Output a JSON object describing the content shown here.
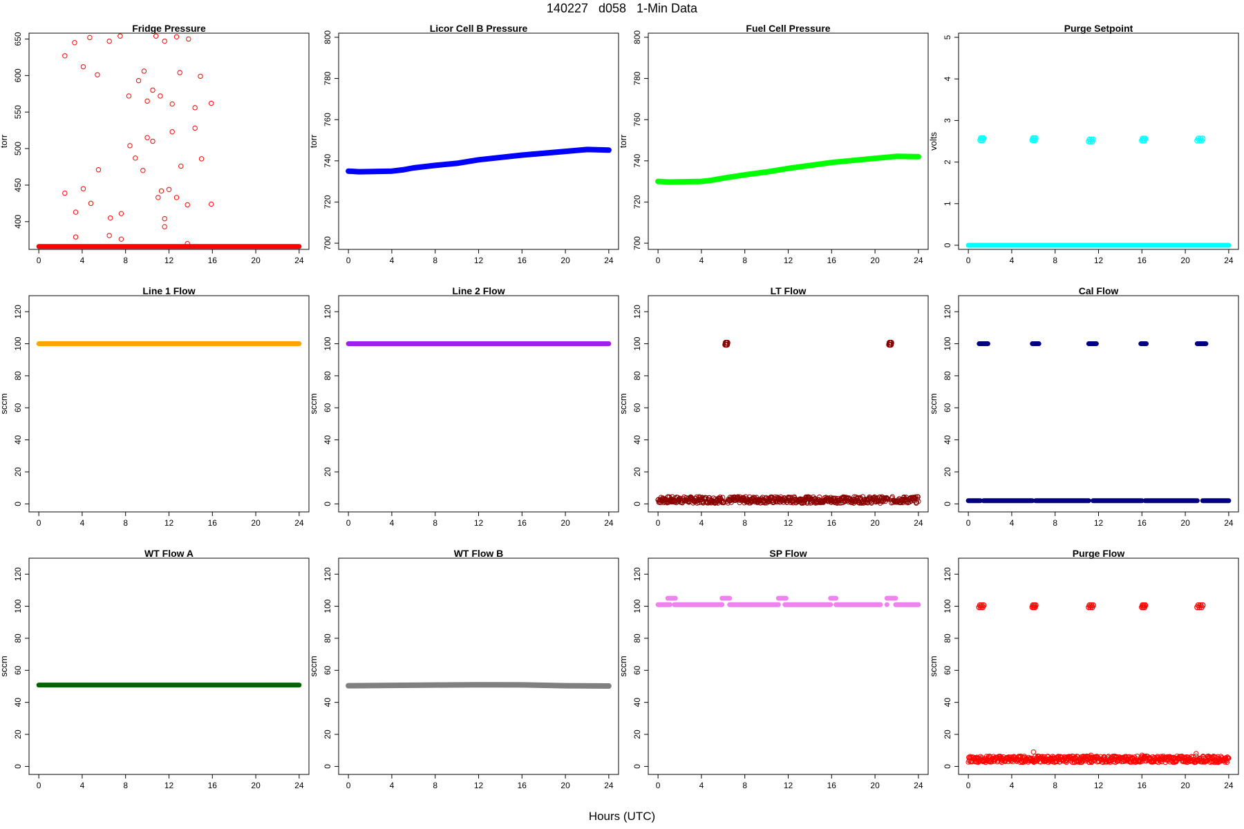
{
  "figure": {
    "title": "140227   d058   1-Min Data",
    "xlabel": "Hours (UTC)"
  },
  "chart_data": [
    {
      "type": "scatter",
      "title": "Fridge Pressure",
      "ylabel": "torr",
      "xlim": [
        0,
        24
      ],
      "ylim": [
        362,
        658
      ],
      "yticks": [
        400,
        450,
        500,
        550,
        600,
        650
      ],
      "xticks": [
        0,
        4,
        8,
        12,
        16,
        20,
        24
      ],
      "series": [
        {
          "color": "#ff0000",
          "baseline": {
            "x": [
              0,
              24
            ],
            "y": 366
          },
          "points": [
            [
              2.4,
              627
            ],
            [
              3.3,
              645
            ],
            [
              4.7,
              652
            ],
            [
              6.5,
              647
            ],
            [
              7.5,
              654
            ],
            [
              10.8,
              654
            ],
            [
              11.6,
              647
            ],
            [
              12.7,
              653
            ],
            [
              13.8,
              650
            ],
            [
              4.1,
              612
            ],
            [
              5.4,
              601
            ],
            [
              9.2,
              593
            ],
            [
              9.7,
              606
            ],
            [
              14.9,
              599
            ],
            [
              13.0,
              604
            ],
            [
              8.3,
              572
            ],
            [
              10.0,
              565
            ],
            [
              10.5,
              580
            ],
            [
              11.2,
              572
            ],
            [
              12.3,
              561
            ],
            [
              14.4,
              556
            ],
            [
              15.9,
              562
            ],
            [
              8.4,
              504
            ],
            [
              8.9,
              487
            ],
            [
              10.0,
              515
            ],
            [
              10.5,
              510
            ],
            [
              12.3,
              523
            ],
            [
              14.4,
              528
            ],
            [
              15.0,
              486
            ],
            [
              13.1,
              476
            ],
            [
              5.5,
              471
            ],
            [
              9.6,
              470
            ],
            [
              2.4,
              439
            ],
            [
              4.1,
              445
            ],
            [
              4.8,
              425
            ],
            [
              3.4,
              413
            ],
            [
              11.0,
              433
            ],
            [
              11.3,
              442
            ],
            [
              12.0,
              444
            ],
            [
              12.7,
              433
            ],
            [
              13.7,
              423
            ],
            [
              15.9,
              424
            ],
            [
              6.6,
              405
            ],
            [
              7.6,
              411
            ],
            [
              11.6,
              404
            ],
            [
              11.6,
              393
            ],
            [
              3.4,
              379
            ],
            [
              6.5,
              381
            ],
            [
              7.6,
              376
            ],
            [
              13.7,
              370
            ]
          ]
        }
      ]
    },
    {
      "type": "scatter",
      "title": "Licor Cell B Pressure",
      "ylabel": "torr",
      "xlim": [
        0,
        24
      ],
      "ylim": [
        697,
        802
      ],
      "yticks": [
        700,
        720,
        740,
        760,
        780,
        800
      ],
      "xticks": [
        0,
        4,
        8,
        12,
        16,
        20,
        24
      ],
      "series": [
        {
          "color": "#0000ff",
          "line": [
            [
              0,
              735
            ],
            [
              1,
              734.7
            ],
            [
              4,
              735
            ],
            [
              5,
              735.6
            ],
            [
              6,
              736.6
            ],
            [
              8,
              737.8
            ],
            [
              10,
              738.8
            ],
            [
              12,
              740.5
            ],
            [
              16,
              742.8
            ],
            [
              20,
              744.6
            ],
            [
              22,
              745.5
            ],
            [
              24,
              745.2
            ]
          ]
        }
      ]
    },
    {
      "type": "scatter",
      "title": "Fuel Cell Pressure",
      "ylabel": "torr",
      "xlim": [
        0,
        24
      ],
      "ylim": [
        697,
        802
      ],
      "yticks": [
        700,
        720,
        740,
        760,
        780,
        800
      ],
      "xticks": [
        0,
        4,
        8,
        12,
        16,
        20,
        24
      ],
      "series": [
        {
          "color": "#00ff00",
          "line": [
            [
              0,
              730
            ],
            [
              1,
              729.7
            ],
            [
              4,
              730
            ],
            [
              5,
              730.6
            ],
            [
              6,
              731.6
            ],
            [
              8,
              733.2
            ],
            [
              10,
              734.6
            ],
            [
              12,
              736.3
            ],
            [
              16,
              739.2
            ],
            [
              20,
              741.2
            ],
            [
              22,
              742.2
            ],
            [
              24,
              742
            ]
          ]
        }
      ]
    },
    {
      "type": "scatter",
      "title": "Purge Setpoint",
      "ylabel": "volts",
      "xlim": [
        0,
        24
      ],
      "ylim": [
        -0.1,
        5.1
      ],
      "yticks": [
        0,
        1,
        2,
        3,
        4,
        5
      ],
      "xticks": [
        0,
        4,
        8,
        12,
        16,
        20,
        24
      ],
      "series": [
        {
          "color": "#00ffff",
          "baseline": {
            "x": [
              0,
              24
            ],
            "y": 0
          },
          "clusters": [
            [
              1.1,
              1.4,
              2.55
            ],
            [
              5.9,
              6.2,
              2.55
            ],
            [
              11.1,
              11.5,
              2.52
            ],
            [
              16.0,
              16.3,
              2.54
            ],
            [
              21.1,
              21.6,
              2.54
            ]
          ]
        }
      ]
    },
    {
      "type": "scatter",
      "title": "Line 1 Flow",
      "ylabel": "sccm",
      "xlim": [
        0,
        24
      ],
      "ylim": [
        -5,
        130
      ],
      "yticks": [
        0,
        20,
        40,
        60,
        80,
        100,
        120
      ],
      "xticks": [
        0,
        4,
        8,
        12,
        16,
        20,
        24
      ],
      "series": [
        {
          "color": "#ffa500",
          "baseline": {
            "x": [
              0,
              24
            ],
            "y": 100
          }
        }
      ]
    },
    {
      "type": "scatter",
      "title": "Line 2 Flow",
      "ylabel": "sccm",
      "xlim": [
        0,
        24
      ],
      "ylim": [
        -5,
        130
      ],
      "yticks": [
        0,
        20,
        40,
        60,
        80,
        100,
        120
      ],
      "xticks": [
        0,
        4,
        8,
        12,
        16,
        20,
        24
      ],
      "series": [
        {
          "color": "#a020f0",
          "baseline": {
            "x": [
              0,
              24
            ],
            "y": 100
          }
        }
      ]
    },
    {
      "type": "scatter",
      "title": "LT Flow",
      "ylabel": "sccm",
      "xlim": [
        0,
        24
      ],
      "ylim": [
        -5,
        130
      ],
      "yticks": [
        0,
        20,
        40,
        60,
        80,
        100,
        120
      ],
      "xticks": [
        0,
        4,
        8,
        12,
        16,
        20,
        24
      ],
      "series": [
        {
          "color": "#8b0000",
          "noisy_band": {
            "x": [
              0,
              24
            ],
            "y": [
              0.5,
              4.5
            ],
            "gaps": [
              6.1,
              6.4,
              21.2,
              21.5
            ]
          },
          "clusters": [
            [
              6.2,
              6.4,
              100
            ],
            [
              21.3,
              21.5,
              100
            ]
          ]
        }
      ]
    },
    {
      "type": "scatter",
      "title": "Cal Flow",
      "ylabel": "sccm",
      "xlim": [
        0,
        24
      ],
      "ylim": [
        -5,
        130
      ],
      "yticks": [
        0,
        20,
        40,
        60,
        80,
        100,
        120
      ],
      "xticks": [
        0,
        4,
        8,
        12,
        16,
        20,
        24
      ],
      "series": [
        {
          "color": "#000080",
          "baseline": {
            "x": [
              0,
              24
            ],
            "y": 2,
            "gaps": [
              1.1,
              1.4,
              5.9,
              6.2,
              11.1,
              11.5,
              16.0,
              16.3,
              21.1,
              21.6
            ]
          },
          "segments": [
            [
              1.0,
              1.8,
              100
            ],
            [
              5.9,
              6.5,
              100
            ],
            [
              11.1,
              11.8,
              100
            ],
            [
              15.9,
              16.4,
              100
            ],
            [
              21.1,
              21.9,
              100
            ]
          ]
        }
      ]
    },
    {
      "type": "scatter",
      "title": "WT Flow A",
      "ylabel": "sccm",
      "xlim": [
        0,
        24
      ],
      "ylim": [
        -5,
        130
      ],
      "yticks": [
        0,
        20,
        40,
        60,
        80,
        100,
        120
      ],
      "xticks": [
        0,
        4,
        8,
        12,
        16,
        20,
        24
      ],
      "series": [
        {
          "color": "#006400",
          "baseline": {
            "x": [
              0,
              24
            ],
            "y": 50.8
          }
        }
      ]
    },
    {
      "type": "scatter",
      "title": "WT Flow B",
      "ylabel": "sccm",
      "xlim": [
        0,
        24
      ],
      "ylim": [
        -5,
        130
      ],
      "yticks": [
        0,
        20,
        40,
        60,
        80,
        100,
        120
      ],
      "xticks": [
        0,
        4,
        8,
        12,
        16,
        20,
        24
      ],
      "series": [
        {
          "color": "#808080",
          "line": [
            [
              0,
              50.4
            ],
            [
              4,
              50.6
            ],
            [
              8,
              50.8
            ],
            [
              12,
              51
            ],
            [
              16,
              50.9
            ],
            [
              20,
              50.4
            ],
            [
              24,
              50.2
            ]
          ]
        }
      ]
    },
    {
      "type": "scatter",
      "title": "SP Flow",
      "ylabel": "sccm",
      "xlim": [
        0,
        24
      ],
      "ylim": [
        -5,
        130
      ],
      "yticks": [
        0,
        20,
        40,
        60,
        80,
        100,
        120
      ],
      "xticks": [
        0,
        4,
        8,
        12,
        16,
        20,
        24
      ],
      "series": [
        {
          "color": "#ee82ee",
          "segments": [
            [
              0,
              1.1,
              101
            ],
            [
              1.5,
              5.9,
              101
            ],
            [
              6.6,
              11.1,
              101
            ],
            [
              11.7,
              15.9,
              101
            ],
            [
              16.4,
              20.5,
              101
            ],
            [
              21.1,
              21.1,
              101
            ],
            [
              21.9,
              24,
              101
            ],
            [
              0.9,
              1.6,
              105
            ],
            [
              5.9,
              6.6,
              105
            ],
            [
              11.1,
              11.8,
              105
            ],
            [
              15.9,
              16.4,
              105
            ],
            [
              21.1,
              21.9,
              105
            ]
          ]
        }
      ]
    },
    {
      "type": "scatter",
      "title": "Purge Flow",
      "ylabel": "sccm",
      "xlim": [
        0,
        24
      ],
      "ylim": [
        -5,
        130
      ],
      "yticks": [
        0,
        20,
        40,
        60,
        80,
        100,
        120
      ],
      "xticks": [
        0,
        4,
        8,
        12,
        16,
        20,
        24
      ],
      "series": [
        {
          "color": "#ff0000",
          "noisy_band": {
            "x": [
              0,
              24
            ],
            "y": [
              2.5,
              6.5
            ]
          },
          "spikes": [
            [
              6.0,
              9
            ],
            [
              21.0,
              8
            ],
            [
              16.0,
              7
            ],
            [
              11.3,
              7
            ]
          ],
          "clusters": [
            [
              1.0,
              1.4,
              100
            ],
            [
              5.9,
              6.2,
              100
            ],
            [
              11.1,
              11.5,
              100
            ],
            [
              16.0,
              16.3,
              100
            ],
            [
              21.1,
              21.6,
              100
            ]
          ]
        }
      ]
    }
  ]
}
